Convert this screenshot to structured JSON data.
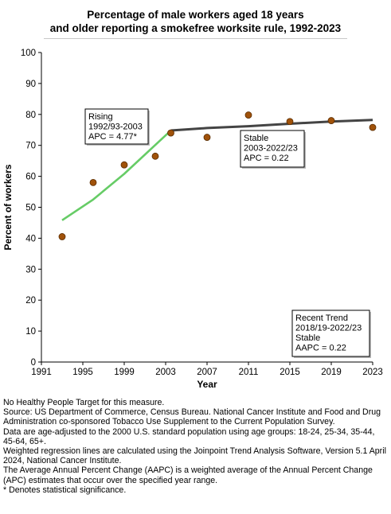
{
  "title_lines": [
    "Percentage of male workers aged 18 years",
    "and older reporting a smokefree worksite rule, 1992-2023"
  ],
  "chart_data": {
    "type": "scatter",
    "xlabel": "Year",
    "ylabel": "Percent of workers",
    "xlim": [
      1991,
      2023
    ],
    "ylim": [
      0,
      100
    ],
    "x_ticks": [
      1991,
      1995,
      1999,
      2003,
      2007,
      2011,
      2015,
      2019,
      2023
    ],
    "y_ticks": [
      0,
      10,
      20,
      30,
      40,
      50,
      60,
      70,
      80,
      90,
      100
    ],
    "points": [
      {
        "x": 1993,
        "y": 40.5
      },
      {
        "x": 1996,
        "y": 58.0
      },
      {
        "x": 1999,
        "y": 63.7
      },
      {
        "x": 2002,
        "y": 66.5
      },
      {
        "x": 2003.5,
        "y": 74.0
      },
      {
        "x": 2007,
        "y": 72.6
      },
      {
        "x": 2011,
        "y": 79.8
      },
      {
        "x": 2015,
        "y": 77.7
      },
      {
        "x": 2019,
        "y": 78.0
      },
      {
        "x": 2023,
        "y": 75.8
      }
    ],
    "trend_lines": [
      {
        "color": "#66cc66",
        "points": [
          [
            1993,
            45.8
          ],
          [
            1996,
            52.5
          ],
          [
            1999,
            60.8
          ],
          [
            2003.5,
            74.8
          ]
        ]
      },
      {
        "color": "#444444",
        "points": [
          [
            2003.5,
            74.8
          ],
          [
            2007,
            75.6
          ],
          [
            2011,
            76.2
          ],
          [
            2015,
            77.0
          ],
          [
            2019,
            77.7
          ],
          [
            2023,
            78.2
          ]
        ]
      }
    ],
    "annotations": [
      {
        "lines": [
          "Rising",
          "1992/93-2003",
          "APC =  4.77*"
        ]
      },
      {
        "lines": [
          "Stable",
          "2003-2022/23",
          "APC =  0.22"
        ]
      },
      {
        "lines": [
          "Recent Trend",
          "2018/19-2022/23",
          "Stable",
          "AAPC =  0.22"
        ]
      }
    ],
    "grid": false,
    "colors": {
      "point": "#a0520a",
      "rising": "#66cc66",
      "stable": "#444444"
    }
  },
  "notes": [
    "No Healthy People Target for this measure.",
    "Source: US Department of Commerce, Census Bureau. National Cancer Institute and Food and Drug Administration co-sponsored Tobacco Use Supplement to the Current Population Survey.",
    "Data are age-adjusted to the 2000 U.S. standard population using age groups: 18-24, 25-34, 35-44, 45-64, 65+.",
    "Weighted regression lines are calculated using the Joinpoint Trend Analysis Software, Version 5.1 April 2024, National Cancer Institute.",
    "The Average Annual Percent Change (AAPC) is a weighted average of the Annual Percent Change (APC) estimates that occur over the specified year range.",
    "* Denotes statistical significance."
  ]
}
